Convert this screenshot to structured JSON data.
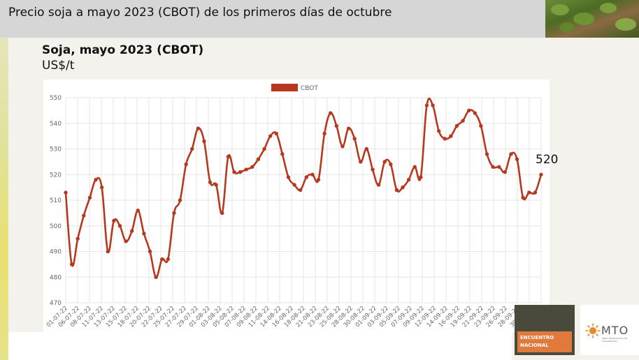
{
  "header": {
    "title": "Precio soja a mayo 2023 (CBOT) de los primeros días de octubre"
  },
  "chart_heading": {
    "title": "Soja, mayo 2023 (CBOT)",
    "unit": "US$/t"
  },
  "callout": "520",
  "badge": {
    "line1": "ENCUENTRO",
    "line2": "NACIONAL"
  },
  "logo": {
    "name": "MTO",
    "sub": "MESA TECNOLÓGICA DE OLEAGINOSAS"
  },
  "colors": {
    "series": "#b5391e",
    "grid": "#e6e6e6",
    "axis_text": "#666666"
  },
  "chart_data": {
    "type": "line",
    "title": "Soja, mayo 2023 (CBOT)",
    "ylabel": "US$/t",
    "ylim": [
      470,
      550
    ],
    "yticks": [
      470,
      480,
      490,
      500,
      510,
      520,
      530,
      540,
      550
    ],
    "grid": true,
    "legend_position": "top-center",
    "x_tick_labels": [
      "01-07-22",
      "06-07-22",
      "08-07-22",
      "11-07-22",
      "13-07-22",
      "15-07-22",
      "18-07-22",
      "20-07-22",
      "22-07-22",
      "25-07-22",
      "27-07-22",
      "29-07-22",
      "01-08-22",
      "03-08-22",
      "05-08-22",
      "07-08-22",
      "09-08-22",
      "11-08-22",
      "14-08-22",
      "16-08-22",
      "18-08-22",
      "21-08-22",
      "23-08-22",
      "25-08-22",
      "28-08-22",
      "30-08-22",
      "01-09-22",
      "03-09-22",
      "05-09-22",
      "07-09-22",
      "09-09-22",
      "12-09-22",
      "14-09-22",
      "16-09-22",
      "19-09-22",
      "21-09-22",
      "23-09-22",
      "26-09-22",
      "28-09-22",
      "30-09-22",
      "03-10-22"
    ],
    "series": [
      {
        "name": "CBOT",
        "values": [
          513,
          485,
          495,
          504,
          511,
          518,
          515,
          490,
          502,
          500,
          494,
          498,
          506,
          497,
          490,
          480,
          487,
          487,
          505,
          510,
          524,
          530,
          538,
          533,
          517,
          516,
          505,
          527,
          521,
          521,
          522,
          523,
          526,
          530,
          535,
          536,
          528,
          519,
          516,
          514,
          519,
          520,
          518,
          536,
          544,
          539,
          531,
          538,
          534,
          525,
          530,
          522,
          516,
          525,
          524,
          514,
          515,
          518,
          523,
          519,
          547,
          547,
          537,
          534,
          535,
          539,
          541,
          545,
          544,
          539,
          528,
          523,
          523,
          521,
          528,
          526,
          511,
          513,
          513,
          520
        ]
      }
    ]
  }
}
